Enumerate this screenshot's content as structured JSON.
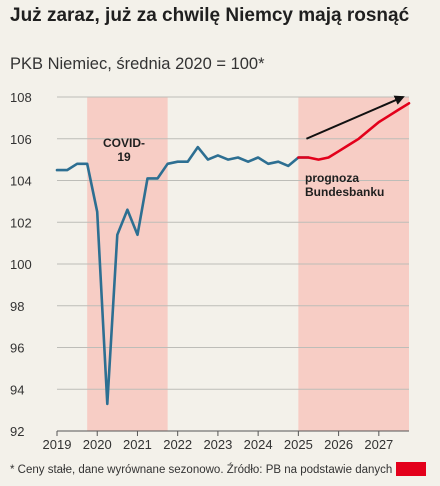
{
  "title": "Już zaraz, już za chwilę Niemcy mają rosnąć",
  "subtitle": "PKB Niemiec, średnia 2020 = 100*",
  "footnote": "* Ceny stałe, dane wyrównane sezonowo. Źródło: PB na podstawie danych",
  "colors": {
    "series": "#2d6f92",
    "forecast": "#e3001b",
    "shade": "#f7cdc5",
    "arrow": "#111111",
    "brand": "#e3001b"
  },
  "chart_data": {
    "type": "line",
    "title": "PKB Niemiec, średnia 2020 = 100*",
    "xlim": [
      2019,
      2027.75
    ],
    "ylim": [
      92,
      108
    ],
    "x_ticks": [
      2019,
      2020,
      2021,
      2022,
      2023,
      2024,
      2025,
      2026,
      2027
    ],
    "y_ticks": [
      92,
      94,
      96,
      98,
      100,
      102,
      104,
      106,
      108
    ],
    "grid": "horizontal",
    "series": [
      {
        "x": [
          2019.0,
          2019.25,
          2019.5,
          2019.75,
          2020.0,
          2020.25,
          2020.5,
          2020.75,
          2021.0,
          2021.25,
          2021.5,
          2021.75,
          2022.0,
          2022.25,
          2022.5,
          2022.75,
          2023.0,
          2023.25,
          2023.5,
          2023.75,
          2024.0,
          2024.25,
          2024.5,
          2024.75,
          2025.0,
          2025.25
        ],
        "values": [
          104.5,
          104.5,
          104.8,
          104.8,
          102.5,
          93.3,
          101.4,
          102.6,
          101.4,
          104.1,
          104.1,
          104.8,
          104.9,
          104.9,
          105.6,
          105.0,
          105.2,
          105.0,
          105.1,
          104.9,
          105.1,
          104.8,
          104.9,
          104.7,
          105.1,
          105.1
        ]
      },
      {
        "x": [
          2025.0,
          2025.25,
          2025.5,
          2025.75,
          2026.0,
          2026.25,
          2026.5,
          2026.75,
          2027.0,
          2027.25,
          2027.5,
          2027.75
        ],
        "values": [
          105.1,
          105.1,
          105.0,
          105.1,
          105.4,
          105.7,
          106.0,
          106.4,
          106.8,
          107.1,
          107.4,
          107.7
        ]
      }
    ],
    "shaded_regions": [
      {
        "from": 2019.75,
        "to": 2021.75,
        "label": "COVID-19"
      },
      {
        "from": 2025.0,
        "to": 2027.75,
        "label": "prognoza Bundesbanku"
      }
    ],
    "annotations": [
      {
        "text": "COVID-\n19"
      },
      {
        "text": "prognoza\nBundesbanku"
      }
    ],
    "trend_arrow": {
      "x": [
        2025.2,
        2027.6
      ],
      "y": [
        106.0,
        108.0
      ]
    }
  }
}
